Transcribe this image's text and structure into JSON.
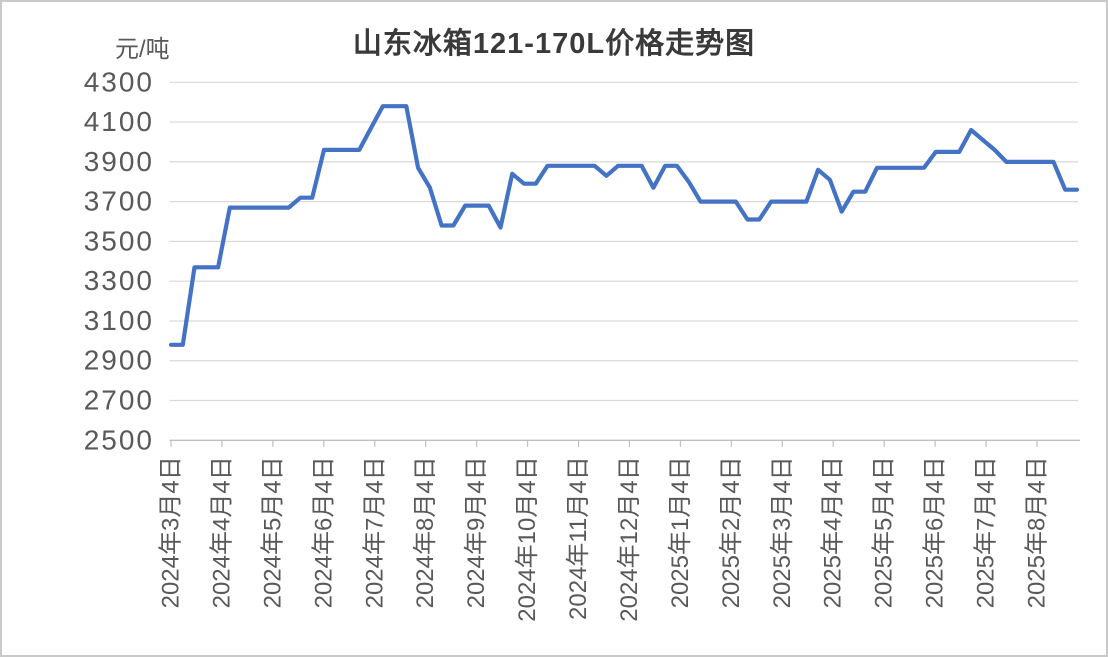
{
  "chart_data": {
    "type": "line",
    "title": "山东冰箱121-170L价格走势图",
    "unit_label": "元/吨",
    "ylabel": "元/吨",
    "xlabel": "",
    "grid": "horizontal",
    "legend": "none",
    "ylim": [
      2500,
      4300
    ],
    "y_ticks": [
      2500,
      2700,
      2900,
      3100,
      3300,
      3500,
      3700,
      3900,
      4100,
      4300
    ],
    "x_tick_labels": [
      "2024年3月4日",
      "2024年4月4日",
      "2024年5月4日",
      "2024年6月4日",
      "2024年7月4日",
      "2024年8月4日",
      "2024年9月4日",
      "2024年10月4日",
      "2024年11月4日",
      "2024年12月4日",
      "2025年1月4日",
      "2025年2月4日",
      "2025年3月4日",
      "2025年4月4日",
      "2025年5月4日",
      "2025年6月4日",
      "2025年7月4日",
      "2025年8月4日"
    ],
    "colors": {
      "line": "#4472C4",
      "grid": "#D9D9D9",
      "axis": "#BFBFBF",
      "tick_label": "#595959",
      "title": "#3A3A3A"
    },
    "series": [
      {
        "name": "山东冰箱121-170L价格",
        "color": "#4472C4",
        "x_dates": [
          "2024-03-04",
          "2024-03-11",
          "2024-03-18",
          "2024-03-25",
          "2024-04-01",
          "2024-04-08",
          "2024-04-15",
          "2024-04-22",
          "2024-04-29",
          "2024-05-06",
          "2024-05-13",
          "2024-05-20",
          "2024-05-27",
          "2024-06-03",
          "2024-06-10",
          "2024-06-17",
          "2024-06-24",
          "2024-07-01",
          "2024-07-08",
          "2024-07-15",
          "2024-07-22",
          "2024-07-29",
          "2024-08-05",
          "2024-08-12",
          "2024-08-19",
          "2024-08-26",
          "2024-09-02",
          "2024-09-09",
          "2024-09-16",
          "2024-09-23",
          "2024-09-30",
          "2024-10-07",
          "2024-10-14",
          "2024-10-21",
          "2024-10-28",
          "2024-11-04",
          "2024-11-11",
          "2024-11-18",
          "2024-11-25",
          "2024-12-02",
          "2024-12-09",
          "2024-12-16",
          "2024-12-23",
          "2024-12-30",
          "2025-01-06",
          "2025-01-13",
          "2025-01-20",
          "2025-01-27",
          "2025-02-03",
          "2025-02-10",
          "2025-02-17",
          "2025-02-24",
          "2025-03-03",
          "2025-03-10",
          "2025-03-17",
          "2025-03-24",
          "2025-03-31",
          "2025-04-07",
          "2025-04-14",
          "2025-04-21",
          "2025-04-28",
          "2025-05-05",
          "2025-05-12",
          "2025-05-19",
          "2025-05-26",
          "2025-06-02",
          "2025-06-09",
          "2025-06-16",
          "2025-06-23",
          "2025-06-30",
          "2025-07-07",
          "2025-07-14",
          "2025-07-21",
          "2025-07-28",
          "2025-08-04",
          "2025-08-11",
          "2025-08-18",
          "2025-08-25"
        ],
        "values": [
          2980,
          2980,
          3370,
          3370,
          3370,
          3670,
          3670,
          3670,
          3670,
          3670,
          3670,
          3720,
          3720,
          3960,
          3960,
          3960,
          3960,
          4070,
          4180,
          4180,
          4180,
          3870,
          3770,
          3580,
          3580,
          3680,
          3680,
          3680,
          3570,
          3840,
          3790,
          3790,
          3880,
          3880,
          3880,
          3880,
          3880,
          3830,
          3880,
          3880,
          3880,
          3770,
          3880,
          3880,
          3800,
          3700,
          3700,
          3700,
          3700,
          3610,
          3610,
          3700,
          3700,
          3700,
          3700,
          3860,
          3810,
          3650,
          3750,
          3750,
          3870,
          3870,
          3870,
          3870,
          3870,
          3950,
          3950,
          3950,
          4060,
          4010,
          3960,
          3900,
          3900,
          3900,
          3900,
          3900,
          3760,
          3760
        ]
      }
    ]
  }
}
